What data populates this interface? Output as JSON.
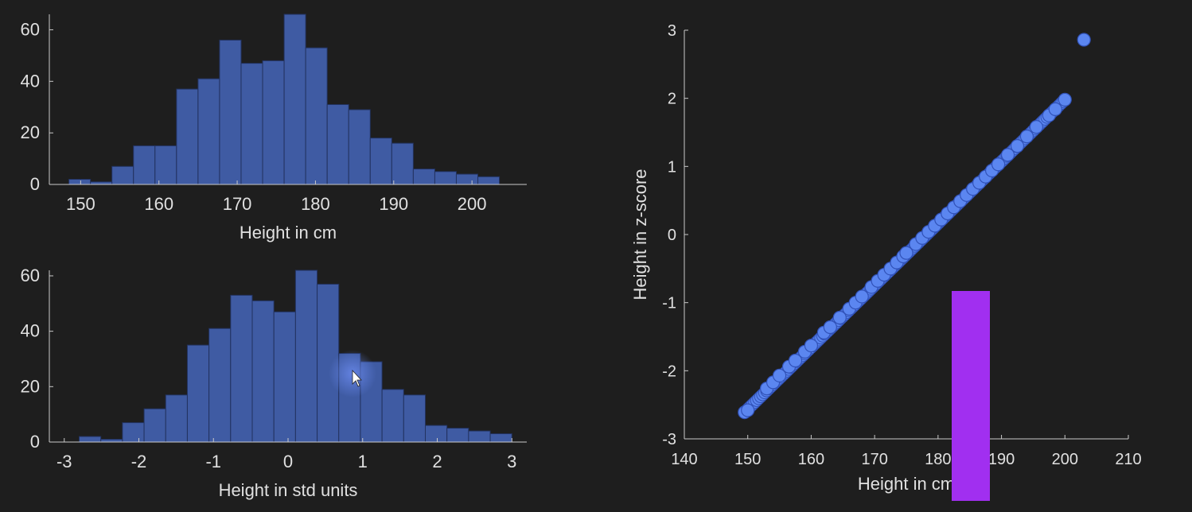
{
  "colors": {
    "background": "#1e1e1e",
    "axis": "#c9c9c9",
    "text": "#e0e0e0",
    "bar_fill": "#3f5ba3",
    "bar_edge": "#22325f",
    "scatter_fill": "#5b86f0",
    "scatter_edge": "#3152b8",
    "overlay": "#a12ff0"
  },
  "chart_data": [
    {
      "type": "bar",
      "name": "histogram-height-cm",
      "xlabel": "Height in cm",
      "ylabel": "",
      "title": "",
      "xlim": [
        146,
        207
      ],
      "ylim": [
        0,
        66
      ],
      "xticks": [
        150,
        160,
        170,
        180,
        190,
        200
      ],
      "yticks": [
        0,
        20,
        40,
        60
      ],
      "bin_start": 148.5,
      "bin_width": 2.75,
      "values": [
        2,
        1,
        7,
        15,
        15,
        37,
        41,
        56,
        47,
        48,
        66,
        53,
        31,
        29,
        18,
        16,
        6,
        5,
        4,
        3
      ]
    },
    {
      "type": "bar",
      "name": "histogram-height-std",
      "xlabel": "Height in std units",
      "ylabel": "",
      "title": "",
      "xlim": [
        -3.2,
        3.2
      ],
      "ylim": [
        0,
        62
      ],
      "xticks": [
        -3,
        -2,
        -1,
        0,
        1,
        2,
        3
      ],
      "yticks": [
        0,
        20,
        40,
        60
      ],
      "bin_start": -2.8,
      "bin_width": 0.29,
      "values": [
        2,
        1,
        7,
        12,
        17,
        35,
        41,
        53,
        51,
        47,
        62,
        57,
        32,
        29,
        19,
        17,
        6,
        5,
        4,
        3
      ]
    },
    {
      "type": "scatter",
      "name": "scatter-cm-vs-zscore",
      "xlabel": "Height in cm",
      "ylabel": "Height in z-score",
      "title": "",
      "xlim": [
        140,
        210
      ],
      "ylim": [
        -3,
        3
      ],
      "xticks": [
        140,
        150,
        160,
        170,
        180,
        190,
        200,
        210
      ],
      "yticks": [
        -3,
        -2,
        -1,
        0,
        1,
        2,
        3
      ],
      "points_x": [
        149.5,
        150,
        153,
        154,
        155,
        156.5,
        157.5,
        159,
        160,
        162,
        163,
        164.5,
        166,
        167,
        168,
        169.5,
        170.5,
        171.5,
        172.5,
        173.5,
        174.5,
        175,
        176.5,
        177.5,
        178.5,
        179.5,
        180.5,
        181.5,
        182.5,
        183.5,
        184.5,
        185.5,
        186.5,
        187.5,
        188.5,
        189.5,
        191,
        192.5,
        194,
        195.5,
        197.5,
        198.5,
        200,
        203
      ],
      "points_y": [
        -2.61,
        -2.58,
        -2.26,
        -2.17,
        -2.07,
        -1.94,
        -1.85,
        -1.72,
        -1.63,
        -1.44,
        -1.36,
        -1.22,
        -1.09,
        -1.0,
        -0.91,
        -0.77,
        -0.68,
        -0.59,
        -0.5,
        -0.41,
        -0.32,
        -0.27,
        -0.14,
        -0.05,
        0.04,
        0.13,
        0.22,
        0.31,
        0.4,
        0.49,
        0.58,
        0.67,
        0.76,
        0.85,
        0.94,
        1.03,
        1.17,
        1.3,
        1.44,
        1.58,
        1.75,
        1.84,
        1.98,
        2.86
      ]
    }
  ]
}
